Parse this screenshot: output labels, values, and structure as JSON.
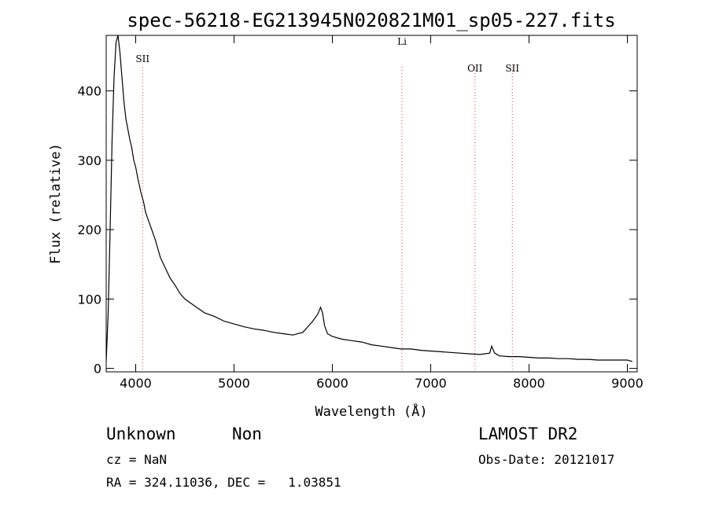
{
  "chart_data": {
    "type": "line",
    "title": "spec-56218-EG213945N020821M01_sp05-227.fits",
    "xlabel": "Wavelength (Å)",
    "ylabel": "Flux (relative)",
    "xlim": [
      3700,
      9100
    ],
    "ylim": [
      -5,
      480
    ],
    "xticks": [
      4000,
      5000,
      6000,
      7000,
      8000,
      9000
    ],
    "yticks": [
      0,
      100,
      200,
      300,
      400
    ],
    "grid": false,
    "series": [
      {
        "color": "#000000",
        "x": [
          3700,
          3720,
          3740,
          3760,
          3780,
          3800,
          3820,
          3840,
          3860,
          3880,
          3900,
          3920,
          3940,
          3960,
          3980,
          4000,
          4020,
          4050,
          4080,
          4100,
          4150,
          4200,
          4250,
          4300,
          4350,
          4400,
          4450,
          4500,
          4600,
          4700,
          4800,
          4900,
          5000,
          5100,
          5200,
          5300,
          5400,
          5500,
          5600,
          5700,
          5800,
          5850,
          5880,
          5900,
          5920,
          5950,
          6000,
          6100,
          6200,
          6300,
          6400,
          6500,
          6600,
          6700,
          6800,
          6900,
          7000,
          7100,
          7200,
          7300,
          7400,
          7500,
          7600,
          7620,
          7650,
          7700,
          7800,
          7900,
          8000,
          8100,
          8200,
          8300,
          8400,
          8500,
          8600,
          8700,
          8800,
          8900,
          9000,
          9050
        ],
        "y": [
          10,
          80,
          200,
          330,
          420,
          470,
          480,
          455,
          420,
          385,
          360,
          345,
          330,
          318,
          300,
          290,
          275,
          255,
          240,
          225,
          205,
          185,
          160,
          145,
          130,
          120,
          108,
          100,
          90,
          80,
          75,
          68,
          64,
          60,
          57,
          55,
          52,
          50,
          48,
          52,
          68,
          78,
          88,
          80,
          62,
          50,
          46,
          42,
          40,
          38,
          34,
          32,
          30,
          28,
          28,
          26,
          25,
          24,
          23,
          22,
          21,
          20,
          22,
          32,
          22,
          18,
          17,
          17,
          16,
          15,
          15,
          14,
          14,
          13,
          13,
          12,
          12,
          12,
          12,
          10
        ]
      }
    ],
    "lines": [
      {
        "label": "SII",
        "x": 4070
      },
      {
        "label": "Li",
        "x": 6708
      },
      {
        "label": "OII",
        "x": 7450
      },
      {
        "label": "SII",
        "x": 7830
      }
    ]
  },
  "info": {
    "class_label": "Unknown",
    "subclass_label": "Non",
    "survey": "LAMOST DR2",
    "cz": "cz = NaN",
    "obs_date": "Obs-Date: 20121017",
    "coords": "RA = 324.11036, DEC =   1.03851"
  }
}
